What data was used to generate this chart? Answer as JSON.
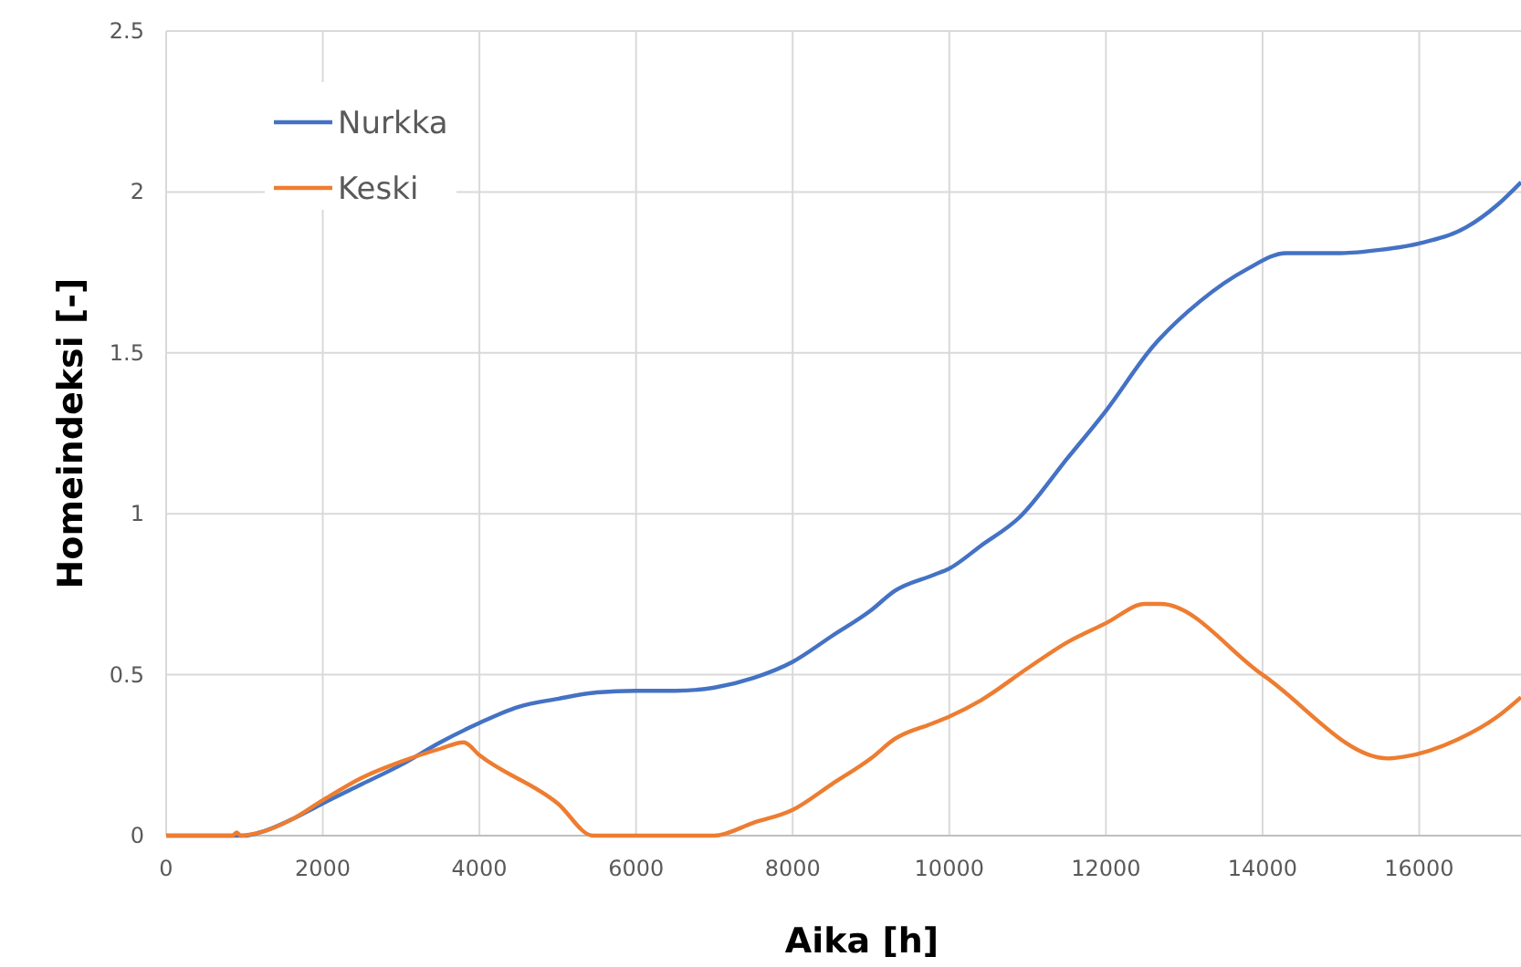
{
  "chart_data": {
    "type": "line",
    "xlabel": "Aika [h]",
    "ylabel": "Homeindeksi [-]",
    "xlim": [
      0,
      17300
    ],
    "xticks": [
      0,
      2000,
      4000,
      6000,
      8000,
      10000,
      12000,
      14000,
      16000
    ],
    "ylim": [
      0,
      2.5
    ],
    "yticks": [
      0,
      {
        "value": 0.5,
        "label": "0.5"
      },
      1,
      {
        "value": 1.5,
        "label": "1.5"
      },
      2,
      {
        "value": 2.5,
        "label": "2.5"
      }
    ],
    "grid": true,
    "legend": "top left",
    "marker": "none",
    "line_style": "solid",
    "series": [
      {
        "name": "Nurkka",
        "color": "#4472c4",
        "x": [
          0,
          1000,
          1200,
          1600,
          2000,
          2500,
          3000,
          3500,
          4000,
          4500,
          5000,
          5500,
          6000,
          6500,
          7000,
          7500,
          8000,
          8500,
          9000,
          9300,
          9800,
          10000,
          10400,
          10900,
          11500,
          12000,
          12600,
          13200,
          13800,
          14300,
          15000,
          15500,
          16000,
          16600,
          17000,
          17300
        ],
        "values": [
          0,
          0,
          0.01,
          0.05,
          0.1,
          0.16,
          0.22,
          0.29,
          0.35,
          0.4,
          0.425,
          0.445,
          0.45,
          0.45,
          0.46,
          0.49,
          0.54,
          0.62,
          0.7,
          0.76,
          0.81,
          0.83,
          0.9,
          0.99,
          1.17,
          1.32,
          1.52,
          1.66,
          1.76,
          1.81,
          1.81,
          1.82,
          1.84,
          1.89,
          1.96,
          2.03
        ]
      },
      {
        "name": "Keski",
        "color": "#ed7d31",
        "x": [
          0,
          850,
          900,
          950,
          1200,
          1600,
          2000,
          2500,
          3000,
          3500,
          3800,
          4000,
          5000,
          5450,
          7000,
          7500,
          8000,
          8500,
          9000,
          9300,
          9800,
          10000,
          10400,
          11000,
          11500,
          12000,
          12500,
          12700,
          14000,
          15600,
          15800,
          16500,
          17000,
          17300
        ],
        "values": [
          0,
          0,
          0.01,
          0,
          0.01,
          0.05,
          0.11,
          0.18,
          0.23,
          0.27,
          0.29,
          0.25,
          0.1,
          0,
          0,
          0.04,
          0.08,
          0.16,
          0.24,
          0.3,
          0.35,
          0.37,
          0.42,
          0.52,
          0.6,
          0.66,
          0.72,
          0.72,
          0.5,
          0.24,
          0.245,
          0.3,
          0.37,
          0.43
        ]
      }
    ]
  }
}
